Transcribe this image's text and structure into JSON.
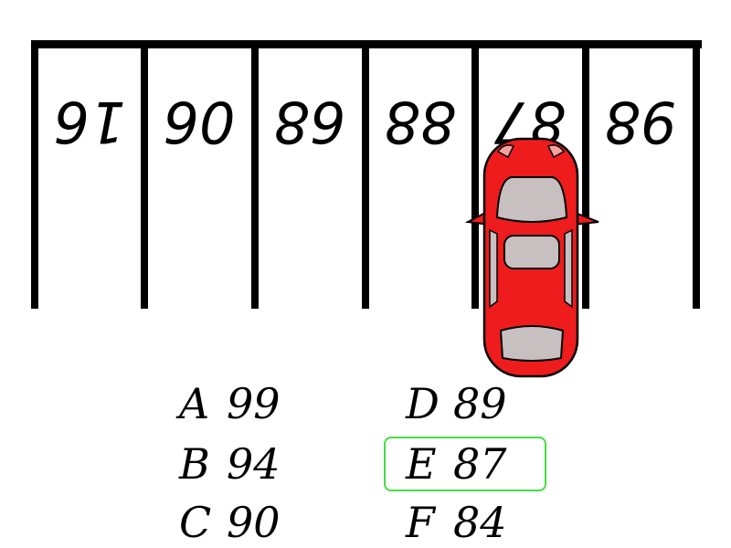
{
  "parking_spots": [
    "16",
    "06",
    "68",
    "88",
    "87",
    "98"
  ],
  "question_spot_index": 4,
  "car": {
    "color": "#ee1c1c",
    "window_color": "#c8c0c0"
  },
  "answers": [
    {
      "letter": "A",
      "value": "99"
    },
    {
      "letter": "B",
      "value": "94"
    },
    {
      "letter": "C",
      "value": "90"
    },
    {
      "letter": "D",
      "value": "89"
    },
    {
      "letter": "E",
      "value": "87"
    },
    {
      "letter": "F",
      "value": "84"
    }
  ],
  "selected_answer": "E",
  "selection_color": "#44dd44"
}
